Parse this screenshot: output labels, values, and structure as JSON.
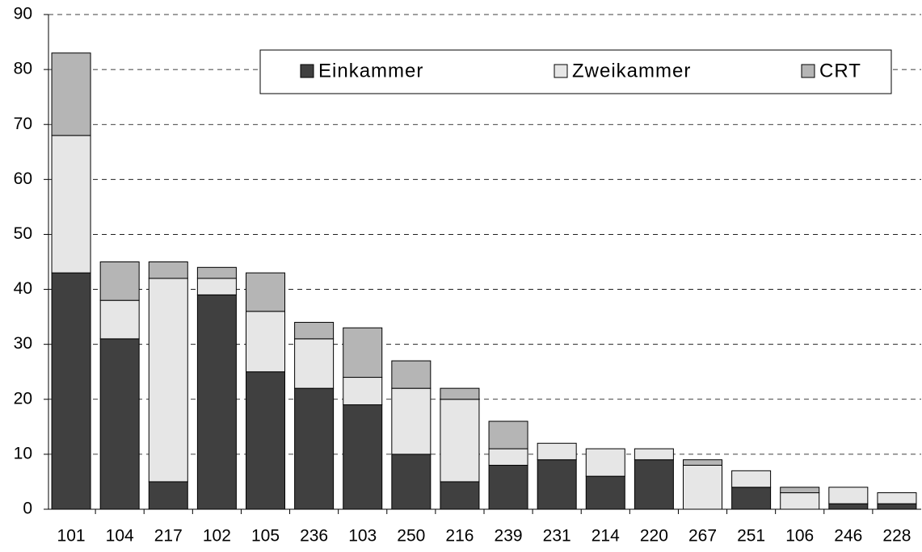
{
  "chart_data": {
    "type": "stacked_bar",
    "categories": [
      "101",
      "104",
      "217",
      "102",
      "105",
      "236",
      "103",
      "250",
      "216",
      "239",
      "231",
      "214",
      "220",
      "267",
      "251",
      "106",
      "246",
      "228"
    ],
    "series": [
      {
        "name": "Einkammer",
        "color": "#404040",
        "values": [
          43,
          31,
          5,
          39,
          25,
          22,
          19,
          10,
          5,
          8,
          9,
          6,
          9,
          0,
          4,
          0,
          1,
          1
        ]
      },
      {
        "name": "Zweikammer",
        "color": "#e6e6e6",
        "values": [
          25,
          7,
          37,
          3,
          11,
          9,
          5,
          12,
          15,
          3,
          3,
          5,
          2,
          8,
          3,
          3,
          3,
          2
        ]
      },
      {
        "name": "CRT",
        "color": "#b5b5b5",
        "values": [
          15,
          7,
          3,
          2,
          7,
          3,
          9,
          5,
          2,
          5,
          0,
          0,
          0,
          1,
          0,
          1,
          0,
          0
        ]
      }
    ],
    "ylim": [
      0,
      90
    ],
    "yticks": [
      0,
      10,
      20,
      30,
      40,
      50,
      60,
      70,
      80,
      90
    ],
    "grid": true
  }
}
